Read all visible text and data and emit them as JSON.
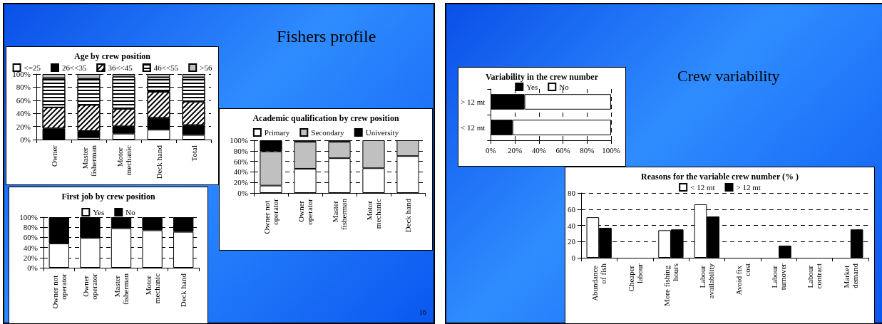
{
  "chart_data": [
    {
      "type": "bar",
      "title": "Age by crew position",
      "stacked": true,
      "legend": "top",
      "grid": "y",
      "annotations": [
        "Fishers profile",
        "16"
      ],
      "categories": [
        "Owner",
        "Master fisherman",
        "Motor mechanic",
        "Deck hand",
        "Total"
      ],
      "ylim": [
        0,
        100
      ],
      "yticks": [
        {
          "value": 0,
          "label": "0%"
        },
        {
          "value": 20,
          "label": "20%"
        },
        {
          "value": 40,
          "label": "40%"
        },
        {
          "value": 60,
          "label": "60%"
        },
        {
          "value": 80,
          "label": "80%"
        },
        {
          "value": 100,
          "label": "100%"
        }
      ],
      "series": [
        {
          "name": "<=25",
          "color": "#ffffff",
          "values": [
            0,
            3,
            9,
            15,
            7
          ]
        },
        {
          "name": "26<<35",
          "color": "#000000",
          "values": [
            17,
            10,
            11,
            18,
            15
          ]
        },
        {
          "name": "36<<45",
          "color": "#ffffff",
          "values": [
            32,
            40,
            27,
            40,
            36
          ]
        },
        {
          "name": "46<<55",
          "color": "#ffffff",
          "values": [
            45,
            40,
            49,
            22,
            37
          ]
        },
        {
          "name": ">56",
          "color": "#c0c0c0",
          "values": [
            6,
            7,
            4,
            5,
            5
          ]
        }
      ]
    },
    {
      "type": "bar",
      "title": "First job by crew position",
      "stacked": true,
      "legend": "top",
      "grid": "y",
      "categories": [
        "Owner not operator",
        "Owner operator",
        "Master fisherman",
        "Motor mechanic",
        "Deck hand"
      ],
      "ylim": [
        0,
        100
      ],
      "yticks": [
        {
          "value": 0,
          "label": "0%"
        },
        {
          "value": 20,
          "label": "20%"
        },
        {
          "value": 40,
          "label": "40%"
        },
        {
          "value": 60,
          "label": "60%"
        },
        {
          "value": 80,
          "label": "80%"
        },
        {
          "value": 100,
          "label": "100%"
        }
      ],
      "series": [
        {
          "name": "Yes",
          "color": "#ffffff",
          "values": [
            48,
            59,
            78,
            74,
            71
          ]
        },
        {
          "name": "No",
          "color": "#000000",
          "values": [
            52,
            41,
            22,
            26,
            29
          ]
        }
      ]
    },
    {
      "type": "bar",
      "title": "Academic qualification by crew position",
      "stacked": true,
      "legend": "top",
      "grid": "y",
      "categories": [
        "Owner not operator",
        "Owner operator",
        "Master fisherman",
        "Motor mechanic",
        "Deck hand"
      ],
      "ylim": [
        0,
        100
      ],
      "yticks": [
        {
          "value": 0,
          "label": "0%"
        },
        {
          "value": 20,
          "label": "20%"
        },
        {
          "value": 40,
          "label": "40%"
        },
        {
          "value": 60,
          "label": "60%"
        },
        {
          "value": 80,
          "label": "80%"
        },
        {
          "value": 100,
          "label": "100%"
        }
      ],
      "series": [
        {
          "name": "Primary",
          "color": "#ffffff",
          "values": [
            14,
            46,
            66,
            47,
            70
          ]
        },
        {
          "name": "Secondary",
          "color": "#c0c0c0",
          "values": [
            65,
            51,
            31,
            53,
            30
          ]
        },
        {
          "name": "University",
          "color": "#000000",
          "values": [
            21,
            3,
            3,
            0,
            0
          ]
        }
      ]
    },
    {
      "type": "bar",
      "title": "Variability in the crew number",
      "stacked": true,
      "orientation": "horizontal",
      "legend": "top",
      "grid": "x",
      "annotations": [
        "Crew variability"
      ],
      "categories": [
        "> 12 mt",
        "< 12 mt"
      ],
      "xlim": [
        0,
        100
      ],
      "xticks": [
        {
          "value": 0,
          "label": "0%"
        },
        {
          "value": 20,
          "label": "20%"
        },
        {
          "value": 40,
          "label": "40%"
        },
        {
          "value": 60,
          "label": "60%"
        },
        {
          "value": 80,
          "label": "80%"
        },
        {
          "value": 100,
          "label": "100%"
        }
      ],
      "series": [
        {
          "name": "Yes",
          "color": "#000000",
          "values": [
            28,
            18
          ]
        },
        {
          "name": "No",
          "color": "#ffffff",
          "values": [
            72,
            82
          ]
        }
      ]
    },
    {
      "type": "bar",
      "title": "Reasons for the variable crew number (% )",
      "legend": "top",
      "grid": "y",
      "categories": [
        "Abundance of fish",
        "Cheaper labour",
        "More fishing hours",
        "Labour availability",
        "Avoid fix cost",
        "Labour turnover",
        "Labour contract",
        "Market demand"
      ],
      "ylim": [
        0,
        80
      ],
      "yticks": [
        0,
        20,
        40,
        60,
        80
      ],
      "series": [
        {
          "name": "< 12 mt",
          "color": "#ffffff",
          "values": [
            50,
            0,
            34,
            66,
            0,
            0,
            0,
            0
          ]
        },
        {
          "name": "> 12 mt",
          "color": "#000000",
          "values": [
            37,
            0,
            35,
            51,
            0,
            15,
            0,
            35
          ]
        }
      ]
    }
  ]
}
